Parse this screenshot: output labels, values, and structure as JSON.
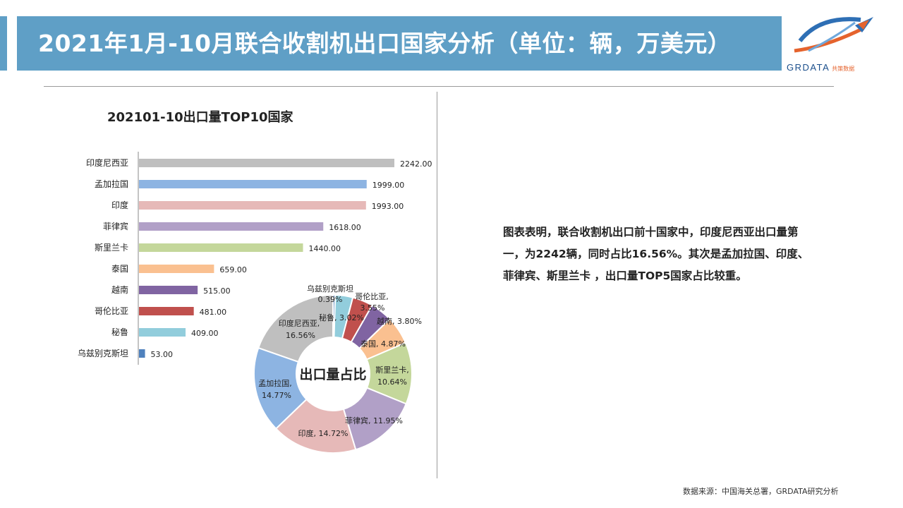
{
  "header": {
    "title": "2021年1月-10月联合收割机出口国家分析（单位：辆，万美元）",
    "logo_text": "GRDATA",
    "logo_sub": "共策数据"
  },
  "colors": {
    "title_bar": "#5f9fc6",
    "bars": [
      "#bfbfbf",
      "#8db4e2",
      "#e6b9b8",
      "#b1a0c7",
      "#c4d79b",
      "#fac090",
      "#8064a2",
      "#c0504d",
      "#92cddc",
      "#4f81bd"
    ]
  },
  "chart_data": [
    {
      "type": "bar",
      "orientation": "horizontal",
      "title": "202101-10出口量TOP10国家",
      "categories": [
        "印度尼西亚",
        "孟加拉国",
        "印度",
        "菲律宾",
        "斯里兰卡",
        "泰国",
        "越南",
        "哥伦比亚",
        "秘鲁",
        "乌兹别克斯坦"
      ],
      "values": [
        2242,
        1999,
        1993,
        1618,
        1440,
        659,
        515,
        481,
        409,
        53
      ],
      "value_labels": [
        "2242.00",
        "1999.00",
        "1993.00",
        "1618.00",
        "1440.00",
        "659.00",
        "515.00",
        "481.00",
        "409.00",
        "53.00"
      ],
      "xlim": [
        0,
        2242
      ]
    },
    {
      "type": "pie",
      "subtype": "donut",
      "center_label": "出口量占比",
      "slices": [
        {
          "name": "乌兹别克斯坦",
          "value": 0.39,
          "label": "0.39%",
          "color": "#4f81bd"
        },
        {
          "name": "秘鲁",
          "value": 3.02,
          "label": "秘鲁, 3.02%",
          "color": "#92cddc"
        },
        {
          "name": "哥伦比亚",
          "value": 3.55,
          "label": "3.55%",
          "color": "#c0504d"
        },
        {
          "name": "越南",
          "value": 3.8,
          "label": "越南, 3.80%",
          "color": "#8064a2"
        },
        {
          "name": "泰国",
          "value": 4.87,
          "label": "泰国, 4.87%",
          "color": "#fac090"
        },
        {
          "name": "斯里兰卡",
          "value": 10.64,
          "label": "10.64%",
          "color": "#c4d79b"
        },
        {
          "name": "菲律宾",
          "value": 11.95,
          "label": "菲律宾, 11.95%",
          "color": "#b1a0c7"
        },
        {
          "name": "印度",
          "value": 14.72,
          "label": "印度, 14.72%",
          "color": "#e6b9b8"
        },
        {
          "name": "孟加拉国",
          "value": 14.77,
          "label": "14.77%",
          "color": "#8db4e2"
        },
        {
          "name": "印度尼西亚",
          "value": 16.56,
          "label": "16.56%",
          "color": "#bfbfbf"
        }
      ],
      "extra_labels": [
        "乌兹别克斯坦",
        "哥伦比亚,",
        "斯里兰卡,",
        "孟加拉国,",
        "印度尼西亚,"
      ]
    }
  ],
  "summary": "图表表明，联合收割机出口前十国家中，印度尼西亚出口量第一，为2242辆，同时占比16.56%。其次是孟加拉国、印度、菲律宾、斯里兰卡 ，出口量TOP5国家占比较重。",
  "source": "数据来源：中国海关总署，GRDATA研究分析"
}
